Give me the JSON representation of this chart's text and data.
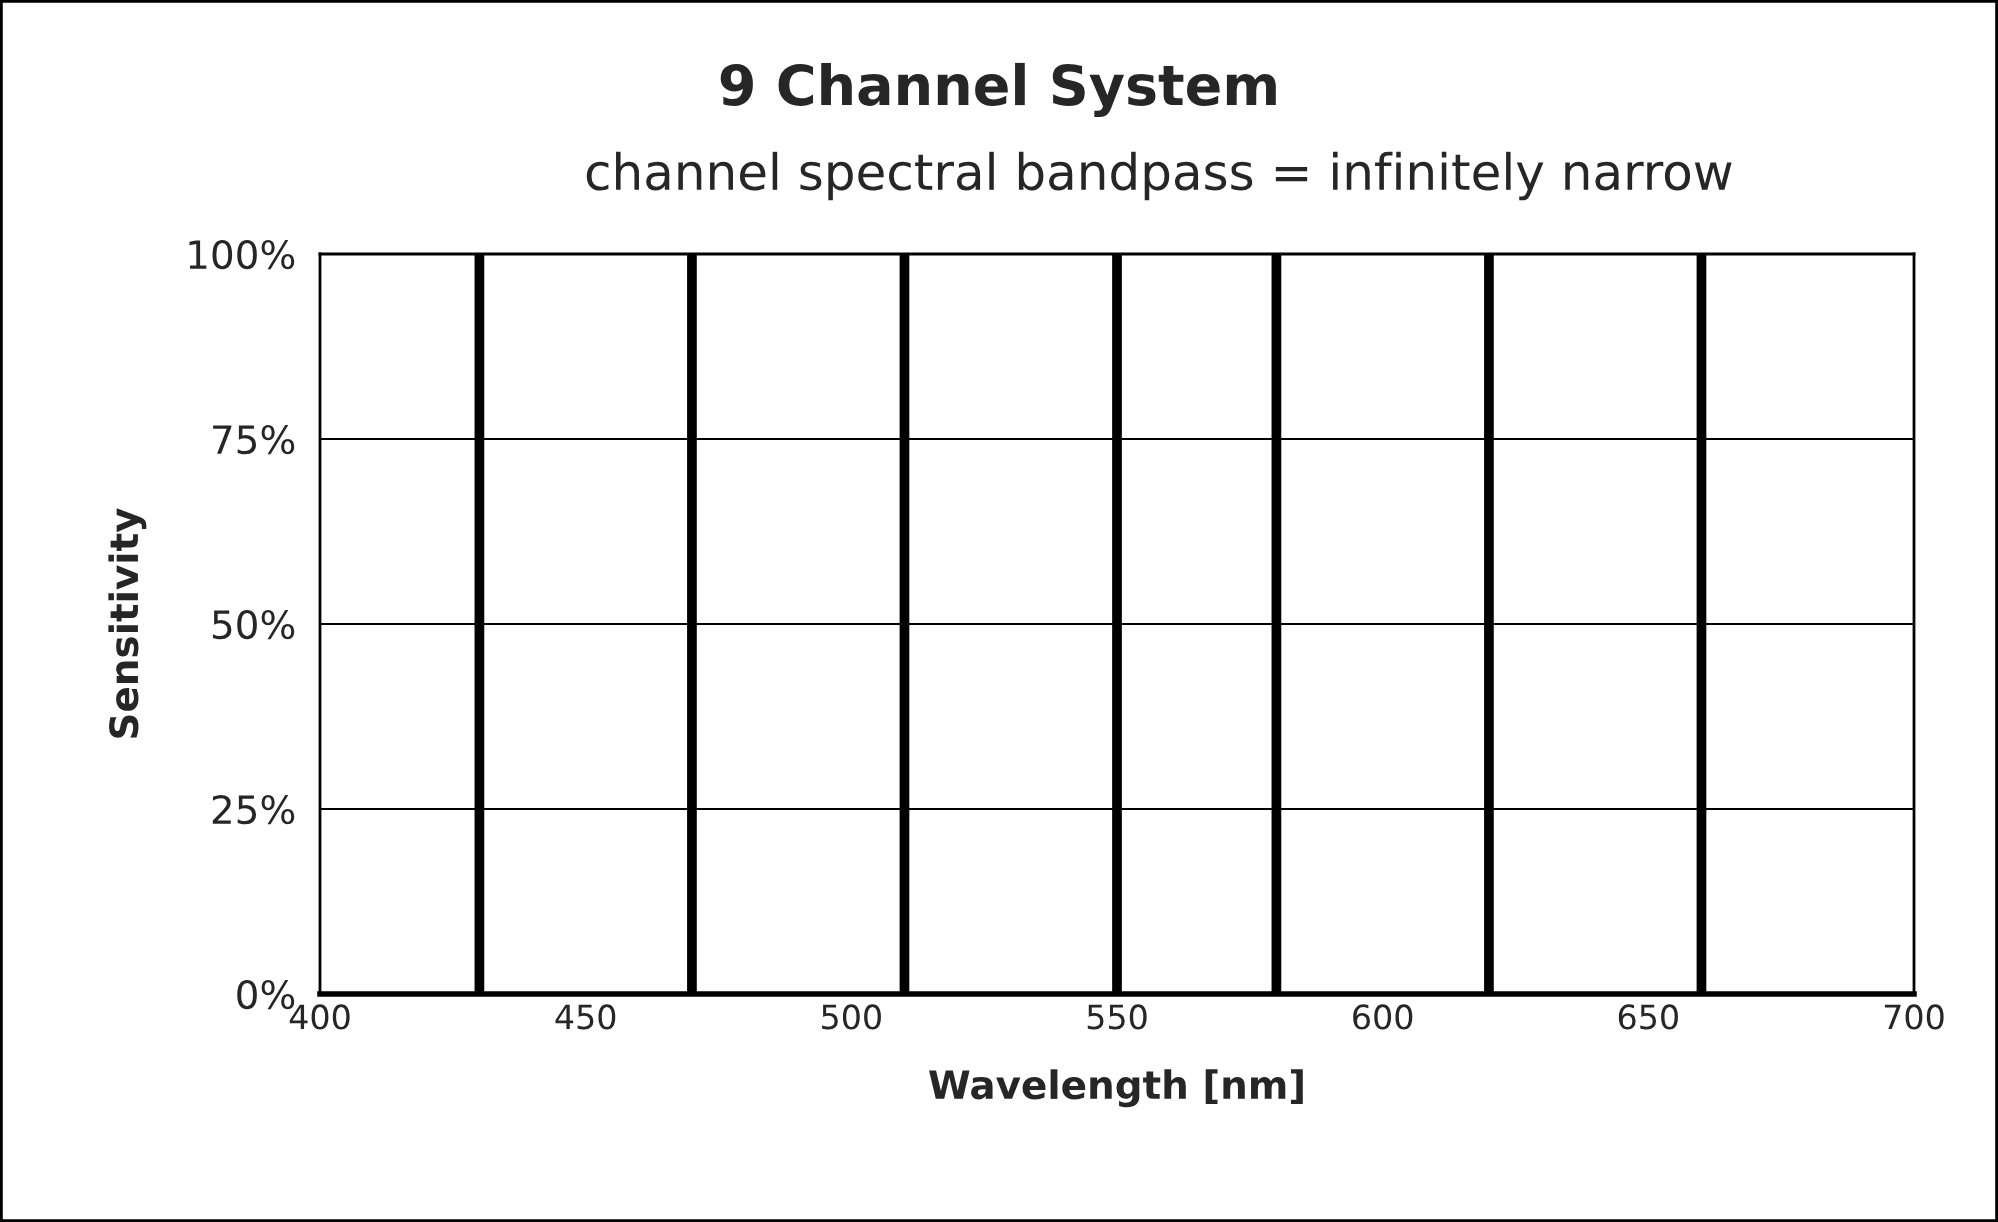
{
  "chart_data": {
    "type": "line",
    "title": "9 Channel System",
    "subtitle": "channel spectral bandpass = infinitely narrow",
    "xlabel": "Wavelength [nm]",
    "ylabel": "Sensitivity",
    "series": [
      {
        "color": "#000000",
        "x": [
          430,
          430
        ],
        "values": [
          0,
          100
        ]
      },
      {
        "color": "#000000",
        "x": [
          470,
          470
        ],
        "values": [
          0,
          100
        ]
      },
      {
        "color": "#000000",
        "x": [
          510,
          510
        ],
        "values": [
          0,
          100
        ]
      },
      {
        "color": "#000000",
        "x": [
          550,
          550
        ],
        "values": [
          0,
          100
        ]
      },
      {
        "color": "#000000",
        "x": [
          580,
          580
        ],
        "values": [
          0,
          100
        ]
      },
      {
        "color": "#000000",
        "x": [
          620,
          620
        ],
        "values": [
          0,
          100
        ]
      },
      {
        "color": "#000000",
        "x": [
          660,
          660
        ],
        "values": [
          0,
          100
        ]
      }
    ],
    "xlim": [
      400,
      700
    ],
    "xticks": [
      400,
      450,
      500,
      550,
      600,
      650,
      700
    ],
    "ylim": [
      0,
      100
    ],
    "yticks": [
      {
        "value": 0,
        "label": "0%"
      },
      {
        "value": 25,
        "label": "25%"
      },
      {
        "value": 50,
        "label": "50%"
      },
      {
        "value": 75,
        "label": "75%"
      },
      {
        "value": 100,
        "label": "100%"
      }
    ],
    "grid": "y",
    "legend": false,
    "marker": "none",
    "line_style": "solid"
  }
}
